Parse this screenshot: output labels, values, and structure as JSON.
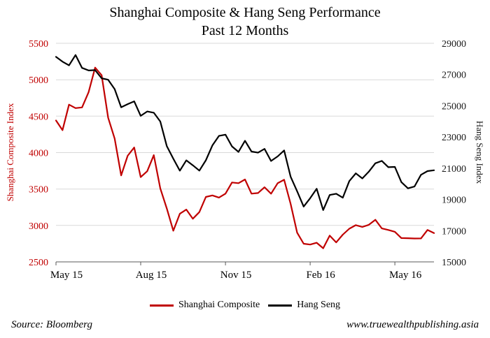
{
  "title": {
    "line1": "Shanghai Composite & Hang Seng Performance",
    "line2": "Past 12 Months"
  },
  "chart_data": {
    "type": "line",
    "title": "Shanghai Composite & Hang Seng Performance Past 12 Months",
    "gridline_color": "#d9d9d9",
    "axis_color": "#595959",
    "x_tick_labels": [
      "May 15",
      "Aug 15",
      "Nov 15",
      "Feb 16",
      "May 16"
    ],
    "x_tick_positions": [
      0,
      13,
      26,
      39,
      52
    ],
    "x_range": [
      0,
      58
    ],
    "left_axis": {
      "title": "Shanghai Composite Index",
      "color": "#c00000",
      "min": 2500,
      "max": 5500,
      "ticks": [
        5500,
        5000,
        4500,
        4000,
        3500,
        3000,
        2500
      ]
    },
    "right_axis": {
      "title": "Hang Seng Index",
      "color": "#000000",
      "min": 15000,
      "max": 29000,
      "ticks": [
        29000,
        27000,
        25000,
        23000,
        21000,
        19000,
        17000,
        15000
      ]
    },
    "series": [
      {
        "name": "Shanghai Composite",
        "axis": "left",
        "color": "#c00000",
        "values": [
          4441,
          4308,
          4658,
          4611,
          4620,
          4830,
          5166,
          5062,
          4478,
          4193,
          3687,
          3957,
          4070,
          3664,
          3744,
          3965,
          3508,
          3232,
          2927,
          3160,
          3218,
          3092,
          3183,
          3391,
          3412,
          3383,
          3436,
          3590,
          3580,
          3631,
          3436,
          3445,
          3525,
          3435,
          3579,
          3627,
          3296,
          2901,
          2749,
          2738,
          2763,
          2687,
          2860,
          2767,
          2874,
          2955,
          3004,
          2979,
          3009,
          3078,
          2959,
          2938,
          2913,
          2827,
          2825,
          2821,
          2822,
          2938,
          2895
        ]
      },
      {
        "name": "Hang Seng",
        "axis": "right",
        "color": "#000000",
        "values": [
          28133,
          27822,
          27585,
          28249,
          27424,
          27260,
          27281,
          26760,
          26663,
          26064,
          24901,
          25105,
          25283,
          24352,
          24636,
          24552,
          23991,
          22410,
          21612,
          20840,
          21504,
          21186,
          20846,
          21506,
          22458,
          23067,
          23151,
          22396,
          22045,
          22754,
          22068,
          21996,
          22236,
          21464,
          21756,
          22138,
          20453,
          19521,
          18542,
          19081,
          19683,
          18320,
          19285,
          19364,
          19112,
          20177,
          20671,
          20346,
          20777,
          21316,
          21467,
          21067,
          21085,
          20110,
          19710,
          19826,
          20577,
          20815,
          20870
        ]
      }
    ]
  },
  "legend": {
    "items": [
      {
        "label": "Shanghai Composite",
        "color": "#c00000"
      },
      {
        "label": "Hang Seng",
        "color": "#000000"
      }
    ]
  },
  "footer": {
    "source": "Source: Bloomberg",
    "website": "www.truewealthpublishing.asia"
  }
}
